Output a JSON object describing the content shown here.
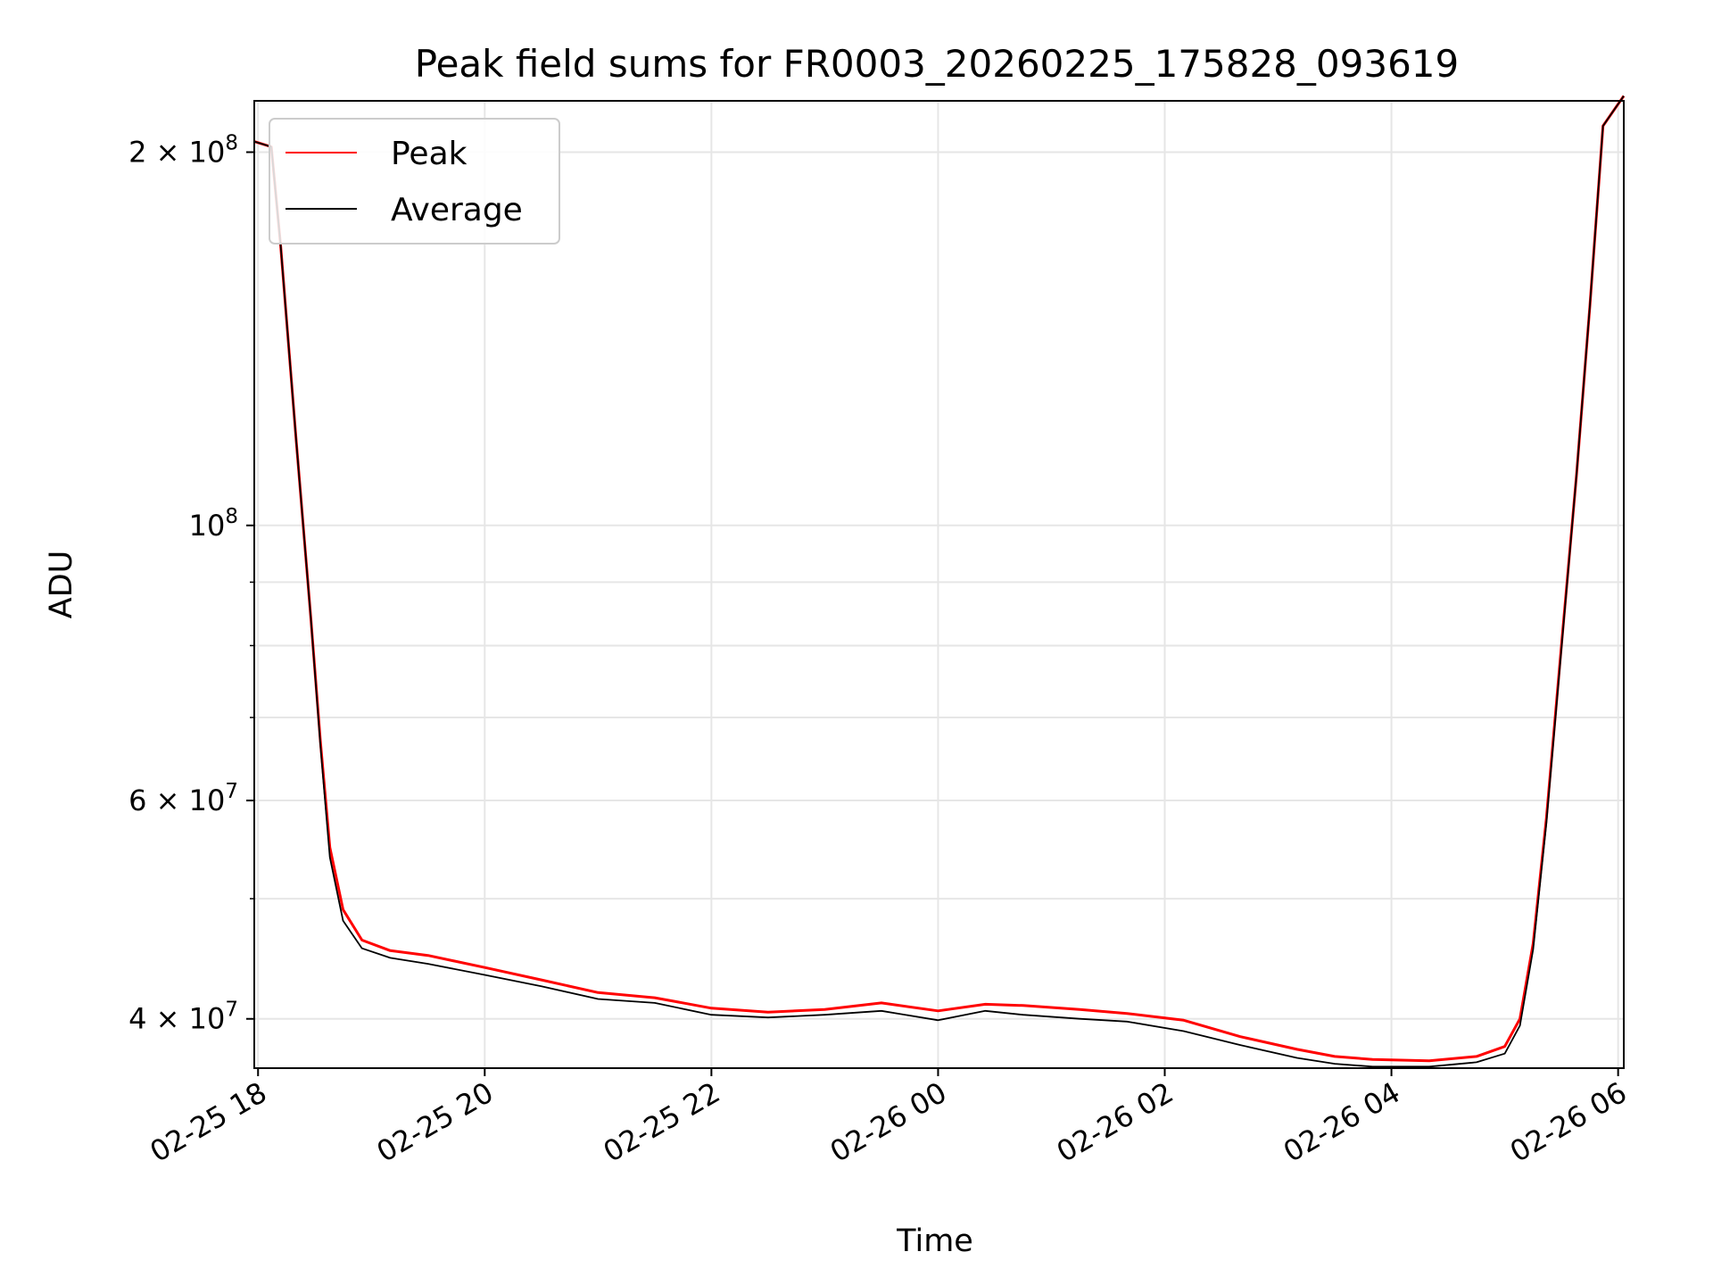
{
  "chart_data": {
    "type": "line",
    "title": "Peak field sums for FR0003_20260225_175828_093619",
    "xlabel": "Time",
    "ylabel": "ADU",
    "y_scale": "log",
    "xlim": [
      "2026-02-25T17:58",
      "2026-02-26T06:03"
    ],
    "ylim": [
      36500000,
      220000000
    ],
    "x_ticks": [
      "02-25 18",
      "02-25 20",
      "02-25 22",
      "02-26 00",
      "02-26 02",
      "02-26 04",
      "02-26 06"
    ],
    "y_ticks": [
      {
        "value": 40000000,
        "mantissa": "4",
        "exponent": "7"
      },
      {
        "value": 60000000,
        "mantissa": "6",
        "exponent": "7"
      },
      {
        "value": 100000000,
        "mantissa": "",
        "exponent": "8"
      },
      {
        "value": 200000000,
        "mantissa": "2",
        "exponent": "8"
      }
    ],
    "grid": true,
    "legend_position": "top-left",
    "series": [
      {
        "name": "Peak",
        "color": "#ff0000",
        "points": [
          [
            "2026-02-25T17:58",
            204000000
          ],
          [
            "2026-02-25T18:07",
            202000000
          ],
          [
            "2026-02-25T18:12",
            168000000
          ],
          [
            "2026-02-25T18:20",
            118000000
          ],
          [
            "2026-02-25T18:28",
            84000000
          ],
          [
            "2026-02-25T18:33",
            67000000
          ],
          [
            "2026-02-25T18:38",
            55000000
          ],
          [
            "2026-02-25T18:45",
            49000000
          ],
          [
            "2026-02-25T18:55",
            46300000
          ],
          [
            "2026-02-25T19:10",
            45400000
          ],
          [
            "2026-02-25T19:30",
            45000000
          ],
          [
            "2026-02-25T20:00",
            44000000
          ],
          [
            "2026-02-25T20:30",
            43000000
          ],
          [
            "2026-02-25T21:00",
            42000000
          ],
          [
            "2026-02-25T21:30",
            41600000
          ],
          [
            "2026-02-25T22:00",
            40800000
          ],
          [
            "2026-02-25T22:30",
            40500000
          ],
          [
            "2026-02-25T23:00",
            40700000
          ],
          [
            "2026-02-25T23:30",
            41200000
          ],
          [
            "2026-02-26T00:00",
            40600000
          ],
          [
            "2026-02-26T00:25",
            41100000
          ],
          [
            "2026-02-26T00:45",
            41000000
          ],
          [
            "2026-02-26T01:15",
            40700000
          ],
          [
            "2026-02-26T01:40",
            40400000
          ],
          [
            "2026-02-26T02:10",
            39900000
          ],
          [
            "2026-02-26T02:40",
            38700000
          ],
          [
            "2026-02-26T03:10",
            37800000
          ],
          [
            "2026-02-26T03:30",
            37300000
          ],
          [
            "2026-02-26T03:50",
            37100000
          ],
          [
            "2026-02-26T04:20",
            37000000
          ],
          [
            "2026-02-26T04:45",
            37300000
          ],
          [
            "2026-02-26T05:00",
            38000000
          ],
          [
            "2026-02-26T05:08",
            40000000
          ],
          [
            "2026-02-26T05:15",
            46000000
          ],
          [
            "2026-02-26T05:22",
            58000000
          ],
          [
            "2026-02-26T05:30",
            80000000
          ],
          [
            "2026-02-26T05:38",
            110000000
          ],
          [
            "2026-02-26T05:45",
            150000000
          ],
          [
            "2026-02-26T05:52",
            210000000
          ],
          [
            "2026-02-26T06:03",
            222000000
          ]
        ]
      },
      {
        "name": "Average",
        "color": "#000000",
        "points": [
          [
            "2026-02-25T17:58",
            204000000
          ],
          [
            "2026-02-25T18:07",
            202000000
          ],
          [
            "2026-02-25T18:12",
            168000000
          ],
          [
            "2026-02-25T18:20",
            118000000
          ],
          [
            "2026-02-25T18:28",
            84000000
          ],
          [
            "2026-02-25T18:33",
            66500000
          ],
          [
            "2026-02-25T18:38",
            54000000
          ],
          [
            "2026-02-25T18:45",
            48000000
          ],
          [
            "2026-02-25T18:55",
            45600000
          ],
          [
            "2026-02-25T19:10",
            44800000
          ],
          [
            "2026-02-25T19:30",
            44300000
          ],
          [
            "2026-02-25T20:00",
            43400000
          ],
          [
            "2026-02-25T20:30",
            42500000
          ],
          [
            "2026-02-25T21:00",
            41500000
          ],
          [
            "2026-02-25T21:30",
            41200000
          ],
          [
            "2026-02-25T22:00",
            40300000
          ],
          [
            "2026-02-25T22:30",
            40100000
          ],
          [
            "2026-02-25T23:00",
            40300000
          ],
          [
            "2026-02-25T23:30",
            40600000
          ],
          [
            "2026-02-26T00:00",
            39900000
          ],
          [
            "2026-02-26T00:25",
            40600000
          ],
          [
            "2026-02-26T00:45",
            40300000
          ],
          [
            "2026-02-26T01:15",
            40000000
          ],
          [
            "2026-02-26T01:40",
            39800000
          ],
          [
            "2026-02-26T02:10",
            39100000
          ],
          [
            "2026-02-26T02:40",
            38100000
          ],
          [
            "2026-02-26T03:10",
            37200000
          ],
          [
            "2026-02-26T03:30",
            36800000
          ],
          [
            "2026-02-26T03:50",
            36600000
          ],
          [
            "2026-02-26T04:20",
            36600000
          ],
          [
            "2026-02-26T04:45",
            36900000
          ],
          [
            "2026-02-26T05:00",
            37500000
          ],
          [
            "2026-02-26T05:08",
            39500000
          ],
          [
            "2026-02-26T05:15",
            45500000
          ],
          [
            "2026-02-26T05:22",
            57500000
          ],
          [
            "2026-02-26T05:30",
            79500000
          ],
          [
            "2026-02-26T05:38",
            110000000
          ],
          [
            "2026-02-26T05:45",
            150000000
          ],
          [
            "2026-02-26T05:52",
            210000000
          ],
          [
            "2026-02-26T06:03",
            222000000
          ]
        ]
      }
    ]
  }
}
